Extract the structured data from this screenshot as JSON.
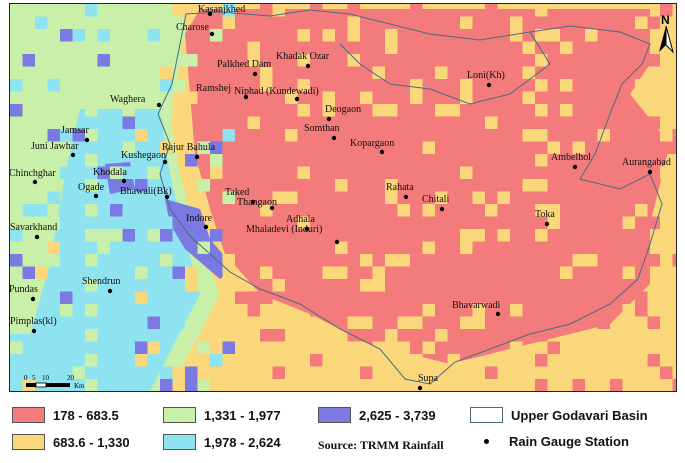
{
  "map": {
    "colors": {
      "class1": "#f47b7b",
      "class2": "#fbd77c",
      "class3": "#c8f0a8",
      "class4": "#8fe3f0",
      "class5": "#7b79e2",
      "basin_outline": "#4a6a80"
    },
    "stations": [
      {
        "name": "Kasanjkhed"
      },
      {
        "name": "Charose"
      },
      {
        "name": "Khadak Ozar"
      },
      {
        "name": "Palkhed Dam"
      },
      {
        "name": "Ramshej"
      },
      {
        "name": "Niphad (Kundewadi)"
      },
      {
        "name": "Loni(Kh)"
      },
      {
        "name": "Waghera"
      },
      {
        "name": "Deogaon"
      },
      {
        "name": "Somthan"
      },
      {
        "name": "Kopargaon"
      },
      {
        "name": "Jamsar"
      },
      {
        "name": "Rajur Bahula"
      },
      {
        "name": "Juni Jawhar"
      },
      {
        "name": "Kushegaon"
      },
      {
        "name": "Ambelhol"
      },
      {
        "name": "Aurangabad"
      },
      {
        "name": "Chinchghar"
      },
      {
        "name": "Khodala"
      },
      {
        "name": "Bhawali(Bk)"
      },
      {
        "name": "Ogade"
      },
      {
        "name": "Taked"
      },
      {
        "name": "Thangaon"
      },
      {
        "name": "Rahata"
      },
      {
        "name": "Chitali"
      },
      {
        "name": "Savarkhand"
      },
      {
        "name": "Indore"
      },
      {
        "name": "Adhala"
      },
      {
        "name": "Toka"
      },
      {
        "name": "Mhaladevi (Induri)"
      },
      {
        "name": "Shendrun"
      },
      {
        "name": "Pundas"
      },
      {
        "name": "Bhavarwadi"
      },
      {
        "name": "Pimplas(kl)"
      },
      {
        "name": "Supa"
      }
    ],
    "north_label": "N",
    "scale": {
      "ticks": [
        "0",
        "5",
        "10",
        "20"
      ],
      "unit": "Km"
    }
  },
  "legend": {
    "class1": "178 - 683.5",
    "class2": "683.6 - 1,330",
    "class3": "1,331 - 1,977",
    "class4": "1,978 - 2,624",
    "class5": "2,625 - 3,739",
    "basin": "Upper Godavari Basin",
    "gauge": "Rain Gauge Station",
    "source": "Source: TRMM Rainfall"
  }
}
